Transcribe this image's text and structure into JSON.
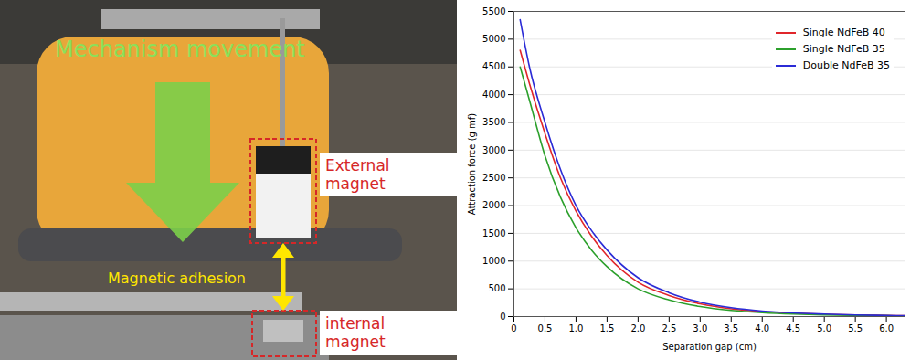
{
  "chart_data": {
    "type": "line",
    "annotations": [
      "Mechanism movement",
      "External magnet",
      "Magnetic adhesion",
      "internal magnet"
    ],
    "x_label": "Separation gap (cm)",
    "y_label": "Attraction force (g mf)",
    "x": [
      0.1,
      0.25,
      0.5,
      0.75,
      1.0,
      1.25,
      1.5,
      2.0,
      2.5,
      3.0,
      3.5,
      4.0,
      4.5,
      5.0,
      5.5,
      6.0,
      6.3
    ],
    "series": [
      {
        "name": "Single NdFeB 40",
        "color": "#e0262b",
        "values": [
          4800,
          4200,
          3300,
          2500,
          1900,
          1450,
          1100,
          620,
          380,
          230,
          140,
          90,
          60,
          40,
          30,
          20,
          15
        ]
      },
      {
        "name": "Single NdFeB 35",
        "color": "#2ca02c",
        "values": [
          4500,
          3900,
          2900,
          2150,
          1600,
          1200,
          900,
          500,
          300,
          180,
          110,
          70,
          45,
          30,
          20,
          15,
          10
        ]
      },
      {
        "name": "Double NdFeB 35",
        "color": "#2b2bd6",
        "values": [
          5350,
          4500,
          3500,
          2650,
          2000,
          1550,
          1200,
          700,
          430,
          260,
          160,
          100,
          65,
          45,
          30,
          20,
          15
        ]
      }
    ],
    "xlim": [
      0,
      6.3
    ],
    "xticks": [
      0,
      0.5,
      {
        "value": 1,
        "label": "1.0"
      },
      1.5,
      {
        "value": 2,
        "label": "2.0"
      },
      2.5,
      {
        "value": 3,
        "label": "3.0"
      },
      3.5,
      {
        "value": 4,
        "label": "4.0"
      },
      4.5,
      {
        "value": 5,
        "label": "5.0"
      },
      5.5,
      {
        "value": 6,
        "label": "6.0"
      }
    ],
    "ylim": [
      0,
      5500
    ],
    "yticks": [
      0,
      500,
      1000,
      1500,
      2000,
      2500,
      3000,
      3500,
      4000,
      4500,
      5000,
      5500
    ],
    "grid": true,
    "legend": "top-right"
  }
}
